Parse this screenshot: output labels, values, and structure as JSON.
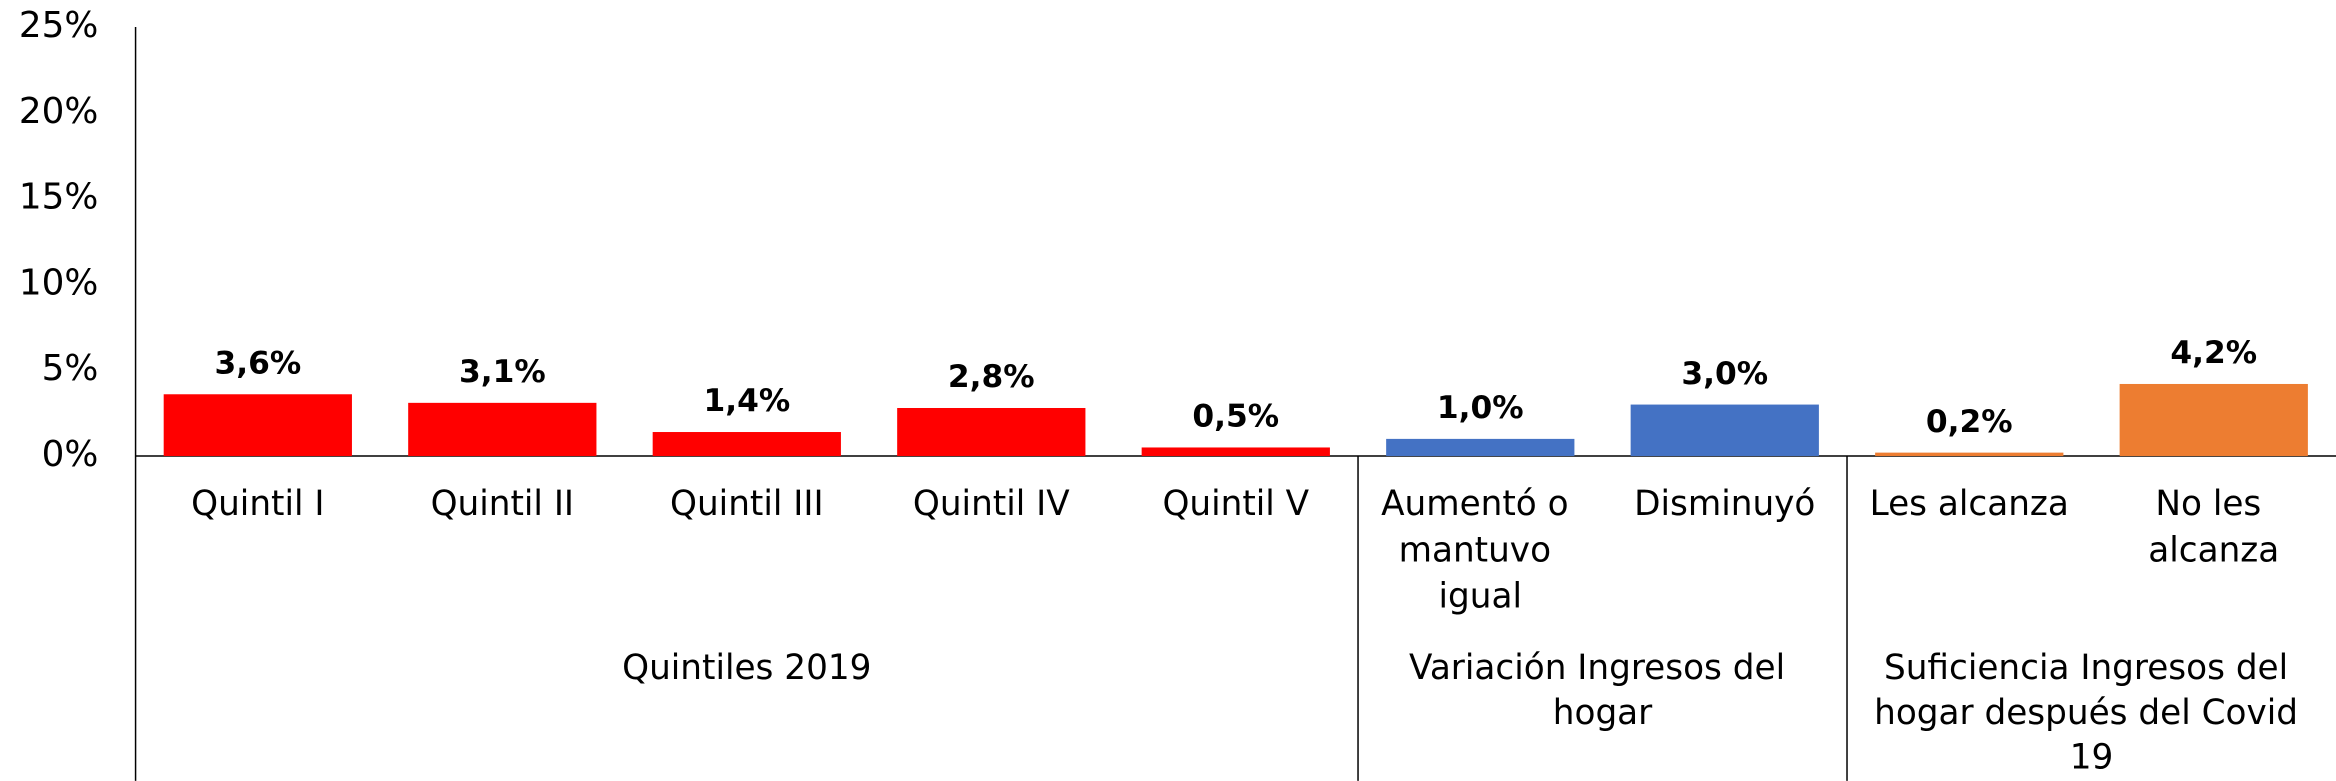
{
  "chart_data": {
    "type": "bar",
    "groups": [
      {
        "name": "Quintiles 2019",
        "color": "#ff0000",
        "categories": [
          "Quintil I",
          "Quintil II",
          "Quintil III",
          "Quintil IV",
          "Quintil V"
        ],
        "values": [
          3.6,
          3.1,
          1.4,
          2.8,
          0.5
        ],
        "value_labels": [
          "3,6%",
          "3,1%",
          "1,4%",
          "2,8%",
          "0,5%"
        ]
      },
      {
        "name": "Variación Ingresos del hogar",
        "color": "#4472c4",
        "categories": [
          "Aumentó o mantuvo igual",
          "Disminuyó"
        ],
        "values": [
          1.0,
          3.0
        ],
        "value_labels": [
          "1,0%",
          "3,0%"
        ]
      },
      {
        "name": "Suficiencia Ingresos del hogar después del Covid 19",
        "color": "#ed7d31",
        "categories": [
          "Les alcanza",
          "No les alcanza"
        ],
        "values": [
          0.2,
          4.2
        ],
        "value_labels": [
          "0,2%",
          "4,2%"
        ]
      }
    ],
    "ylim": [
      0,
      25
    ],
    "yticks": [
      {
        "value": 0,
        "label": "0%"
      },
      {
        "value": 5,
        "label": "5%"
      },
      {
        "value": 10,
        "label": "10%"
      },
      {
        "value": 15,
        "label": "15%"
      },
      {
        "value": 20,
        "label": "20%"
      },
      {
        "value": 25,
        "label": "25%"
      }
    ],
    "grid": false
  }
}
